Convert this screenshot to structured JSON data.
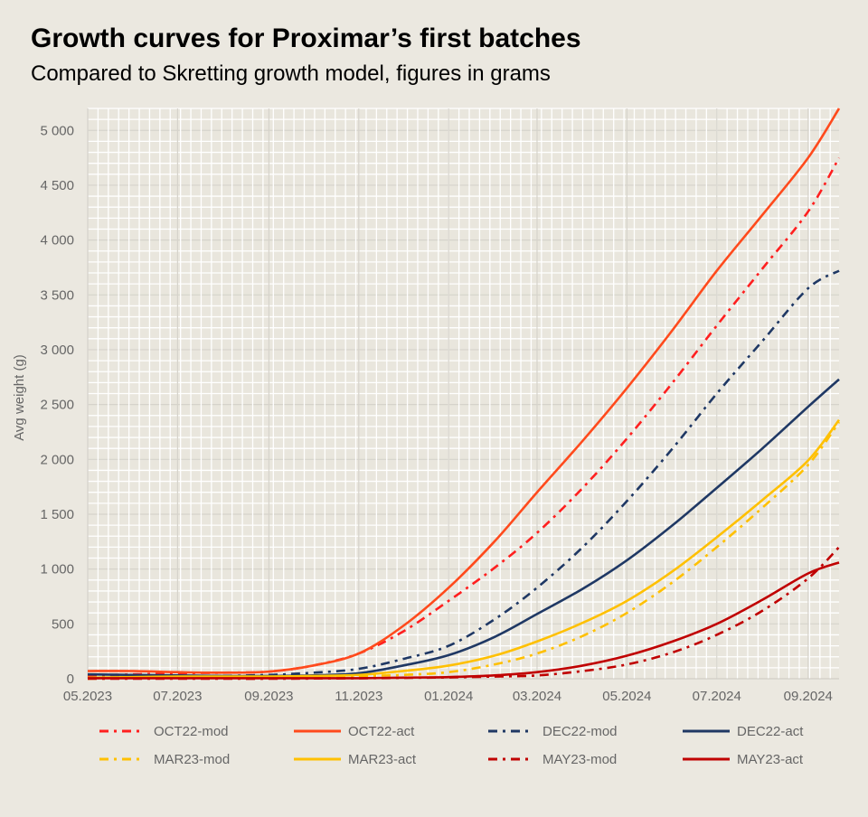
{
  "title": "Growth curves for Proximar’s first batches",
  "subtitle": "Compared to Skretting growth model, figures in grams",
  "chart_data": {
    "type": "line",
    "ylabel": "Avg weight (g)",
    "xlabel": "",
    "xlim": [
      "2023-05-01",
      "2024-09-22"
    ],
    "ylim": [
      0,
      5200
    ],
    "grid": true,
    "legend_position": "bottom",
    "x_ticks": [
      "05.2023",
      "07.2023",
      "09.2023",
      "11.2023",
      "01.2024",
      "03.2024",
      "05.2024",
      "07.2024",
      "09.2024"
    ],
    "x_tick_dates": [
      "2023-05-01",
      "2023-07-01",
      "2023-09-01",
      "2023-11-01",
      "2024-01-01",
      "2024-03-01",
      "2024-05-01",
      "2024-07-01",
      "2024-09-01"
    ],
    "y_ticks": [
      0,
      500,
      1000,
      1500,
      2000,
      2500,
      3000,
      3500,
      4000,
      4500,
      5000
    ],
    "y_tick_labels": [
      "0",
      "500",
      "1 000",
      "1 500",
      "2 000",
      "2 500",
      "3 000",
      "3 500",
      "4 000",
      "4 500",
      "5 000"
    ],
    "x": [
      "2023-05-01",
      "2023-06-01",
      "2023-07-01",
      "2023-08-01",
      "2023-09-01",
      "2023-10-01",
      "2023-11-01",
      "2023-12-01",
      "2024-01-01",
      "2024-02-01",
      "2024-03-01",
      "2024-04-01",
      "2024-05-01",
      "2024-06-01",
      "2024-07-01",
      "2024-08-01",
      "2024-09-01",
      "2024-09-22"
    ],
    "series": [
      {
        "name": "OCT22-mod",
        "color": "#ff1f1f",
        "style": "dashdot",
        "values": [
          30,
          40,
          50,
          55,
          65,
          120,
          230,
          430,
          710,
          1010,
          1330,
          1740,
          2190,
          2700,
          3220,
          3740,
          4260,
          4750
        ]
      },
      {
        "name": "OCT22-act",
        "color": "#ff4a1c",
        "style": "solid",
        "values": [
          70,
          70,
          60,
          55,
          65,
          120,
          230,
          480,
          830,
          1250,
          1700,
          2170,
          2650,
          3180,
          3720,
          4230,
          4750,
          5200
        ]
      },
      {
        "name": "DEC22-mod",
        "color": "#1f3864",
        "style": "dashdot",
        "values": [
          10,
          15,
          20,
          25,
          35,
          55,
          90,
          180,
          300,
          540,
          830,
          1200,
          1620,
          2100,
          2600,
          3080,
          3560,
          3720
        ]
      },
      {
        "name": "DEC22-act",
        "color": "#1f3864",
        "style": "solid",
        "values": [
          40,
          35,
          30,
          25,
          25,
          30,
          50,
          120,
          215,
          380,
          590,
          820,
          1080,
          1400,
          1740,
          2100,
          2480,
          2730
        ]
      },
      {
        "name": "MAR23-mod",
        "color": "#ffc000",
        "style": "dashdot",
        "values": [
          0,
          5,
          10,
          15,
          15,
          20,
          25,
          35,
          60,
          130,
          230,
          390,
          600,
          880,
          1200,
          1560,
          1950,
          2340
        ]
      },
      {
        "name": "MAR23-act",
        "color": "#ffc000",
        "style": "solid",
        "values": [
          10,
          15,
          20,
          20,
          20,
          25,
          35,
          70,
          120,
          210,
          340,
          510,
          710,
          980,
          1290,
          1630,
          1990,
          2360
        ]
      },
      {
        "name": "MAY23-mod",
        "color": "#c00000",
        "style": "dashdot",
        "values": [
          0,
          0,
          0,
          0,
          0,
          2,
          4,
          8,
          12,
          20,
          30,
          70,
          130,
          240,
          400,
          620,
          915,
          1200
        ]
      },
      {
        "name": "MAY23-act",
        "color": "#c00000",
        "style": "solid",
        "values": [
          5,
          5,
          5,
          5,
          5,
          5,
          5,
          10,
          15,
          30,
          60,
          120,
          210,
          340,
          500,
          720,
          960,
          1060
        ]
      }
    ]
  }
}
